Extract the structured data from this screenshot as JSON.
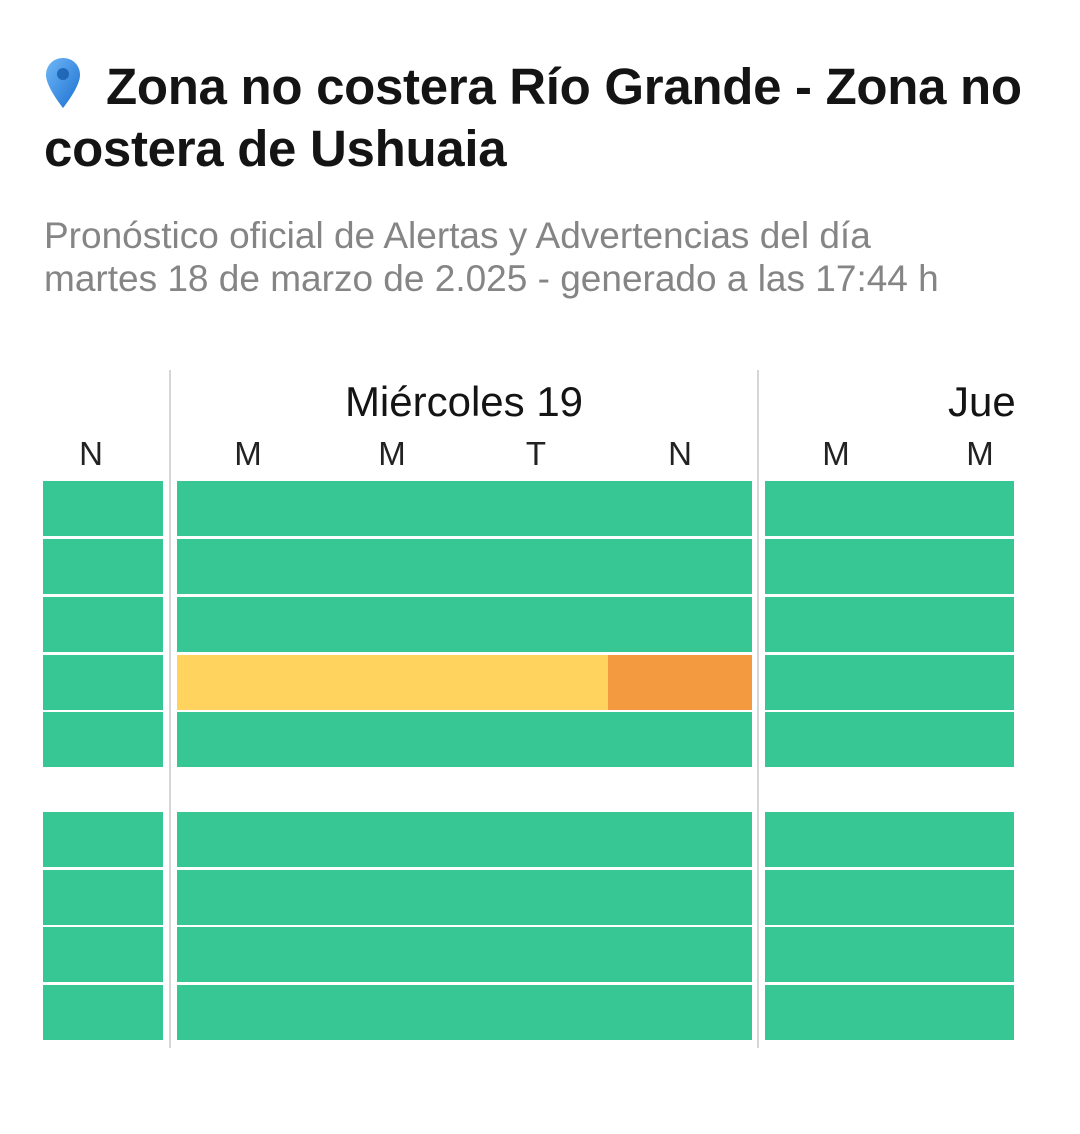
{
  "header": {
    "location_icon": "map-pin-icon",
    "title": "Zona no costera Río Grande - Zona no costera de Ushuaia",
    "subtitle_line1": "Pronóstico oficial de Alertas y Advertencias del día",
    "subtitle_line2": "martes 18 de marzo de 2.025 - generado a las 17:44 h"
  },
  "colors": {
    "no_alert": "#36c795",
    "yellow": "#ffd35e",
    "orange": "#f39a40"
  },
  "days": [
    {
      "label": "",
      "periods": [
        "N"
      ]
    },
    {
      "label": "Miércoles 19",
      "periods": [
        "M",
        "M",
        "T",
        "N"
      ]
    },
    {
      "label": "Jue",
      "periods": [
        "M",
        "M"
      ]
    }
  ],
  "alert_rows": {
    "group1": [
      [
        "green",
        "green",
        "green"
      ],
      [
        "green",
        "green",
        "green"
      ],
      [
        "green",
        "green",
        "green"
      ],
      [
        "green",
        "yellow-yellow-yellow-orange",
        "green"
      ],
      [
        "green",
        "green",
        "green"
      ]
    ],
    "group2": [
      [
        "green",
        "green",
        "green"
      ],
      [
        "green",
        "green",
        "green"
      ],
      [
        "green",
        "green",
        "green"
      ],
      [
        "green",
        "green",
        "green"
      ]
    ]
  }
}
